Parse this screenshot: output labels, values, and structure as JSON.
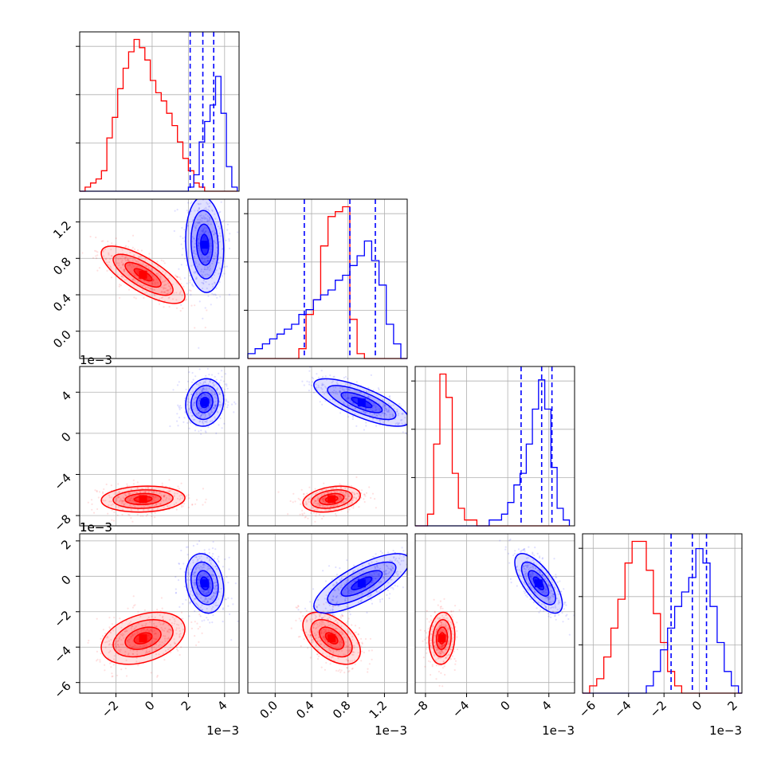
{
  "chart_data": {
    "type": "corner",
    "colors": {
      "series_a": "#ff0000",
      "series_b": "#0000ff",
      "grid": "#b0b0b0",
      "frame": "#000000"
    },
    "series": [
      {
        "color": "red"
      },
      {
        "color": "blue"
      }
    ],
    "grid": true,
    "parameters": [
      {
        "range": [
          -0.004,
          0.0048
        ],
        "ticks": [
          -0.002,
          0.0,
          0.002,
          0.004
        ],
        "tick_labels": [
          "−2",
          "0",
          "2",
          "4"
        ],
        "offset_text": "1e−3"
      },
      {
        "range": [
          -0.3,
          1.45
        ],
        "ticks": [
          0.0,
          0.4,
          0.8,
          1.2
        ],
        "tick_labels": [
          "0.0",
          "0.4",
          "0.8",
          "1.2"
        ],
        "offset_text": "1e−3"
      },
      {
        "range": [
          -0.009,
          0.0065
        ],
        "ticks": [
          -0.008,
          -0.004,
          0.0,
          0.004
        ],
        "tick_labels": [
          "−8",
          "−4",
          "0",
          "4"
        ],
        "offset_text": "1e−3"
      },
      {
        "range": [
          -0.0066,
          0.0024
        ],
        "ticks": [
          -0.006,
          -0.004,
          -0.002,
          0.0,
          0.002
        ],
        "tick_labels": [
          "−6",
          "−4",
          "−2",
          "0",
          "2"
        ],
        "offset_text": "1e−3"
      }
    ],
    "quantiles_series_b": [
      [
        0.0021,
        0.0028,
        0.0034
      ],
      [
        0.32,
        0.82,
        1.1
      ],
      [
        0.0013,
        0.0033,
        0.0043
      ],
      [
        -0.0016,
        -0.0004,
        0.0004
      ]
    ],
    "histograms": [
      {
        "bin_edges": [
          -0.004,
          -0.0037,
          -0.0034,
          -0.0031,
          -0.0028,
          -0.0025,
          -0.0022,
          -0.0019,
          -0.0016,
          -0.0013,
          -0.001,
          -0.0007,
          -0.0004,
          -0.0001,
          0.0002,
          0.0005,
          0.0008,
          0.0011,
          0.0014,
          0.0017,
          0.002,
          0.0023,
          0.0026,
          0.0029,
          0.0032,
          0.0035,
          0.0038,
          0.0041,
          0.0044,
          0.0047
        ],
        "red": [
          0,
          1,
          2,
          3,
          5,
          13,
          18,
          25,
          30,
          34,
          37,
          35,
          32,
          27,
          24,
          22,
          19,
          16,
          12,
          8,
          5,
          2,
          1,
          0,
          0,
          0,
          0,
          0,
          0
        ],
        "blue": [
          0,
          0,
          0,
          0,
          0,
          0,
          0,
          0,
          0,
          0,
          0,
          0,
          0,
          0,
          0,
          0,
          0,
          0,
          0,
          0,
          1,
          4,
          12,
          17,
          21,
          28,
          19,
          6,
          1
        ]
      },
      {
        "bin_edges": [
          -0.3,
          -0.22,
          -0.14,
          -0.06,
          0.02,
          0.1,
          0.18,
          0.26,
          0.34,
          0.42,
          0.5,
          0.58,
          0.66,
          0.74,
          0.82,
          0.9,
          0.98,
          1.06,
          1.14,
          1.22,
          1.3,
          1.38,
          1.45
        ],
        "red": [
          0,
          0,
          0,
          0,
          0,
          0,
          0,
          2,
          9,
          12,
          23,
          29,
          30,
          31,
          8,
          1,
          0,
          0,
          0,
          0,
          0,
          0
        ],
        "blue": [
          1,
          2,
          3,
          4,
          5,
          6,
          7,
          9,
          10,
          12,
          13,
          14,
          16,
          17,
          19,
          21,
          24,
          20,
          15,
          7,
          3,
          0
        ]
      },
      {
        "bin_edges": [
          -0.009,
          -0.0084,
          -0.0078,
          -0.0072,
          -0.0066,
          -0.006,
          -0.0054,
          -0.0048,
          -0.0042,
          -0.0036,
          -0.003,
          -0.0024,
          -0.0018,
          -0.0012,
          -0.0006,
          0.0,
          0.0006,
          0.0012,
          0.0018,
          0.0024,
          0.003,
          0.0036,
          0.0042,
          0.0048,
          0.0054,
          0.006
        ],
        "red": [
          0,
          0,
          2,
          14,
          26,
          22,
          9,
          3,
          1,
          1,
          0,
          0,
          0,
          0,
          0,
          0,
          0,
          0,
          0,
          0,
          0,
          0,
          0,
          0,
          0
        ],
        "blue": [
          0,
          0,
          0,
          0,
          0,
          0,
          0,
          0,
          0,
          0,
          0,
          0,
          1,
          1,
          2,
          4,
          7,
          9,
          14,
          20,
          25,
          20,
          10,
          3,
          1
        ]
      },
      {
        "bin_edges": [
          -0.0066,
          -0.0062,
          -0.0058,
          -0.0054,
          -0.005,
          -0.0046,
          -0.0042,
          -0.0038,
          -0.0034,
          -0.003,
          -0.0026,
          -0.0022,
          -0.0018,
          -0.0014,
          -0.001,
          -0.0006,
          -0.0002,
          0.0002,
          0.0006,
          0.001,
          0.0014,
          0.0018,
          0.0022,
          0.0024
        ],
        "red": [
          0,
          1,
          2,
          5,
          9,
          13,
          18,
          21,
          21,
          17,
          11,
          7,
          3,
          1,
          0,
          0,
          0,
          0,
          0,
          0,
          0,
          0,
          0
        ],
        "blue": [
          0,
          0,
          0,
          0,
          0,
          0,
          0,
          0,
          0,
          1,
          3,
          6,
          9,
          12,
          14,
          16,
          20,
          18,
          12,
          7,
          3,
          1,
          0
        ]
      }
    ],
    "blobs": {
      "red": {
        "means": [
          -0.0005,
          0.62,
          -0.0064,
          -0.0035
        ],
        "sd": [
          0.0011,
          0.15,
          0.0006,
          0.0007
        ]
      },
      "blue": {
        "means": [
          0.0029,
          0.95,
          0.003,
          -0.0004
        ],
        "sd": [
          0.0005,
          0.25,
          0.0011,
          0.0008
        ]
      }
    },
    "panel_links": {
      "1_0": {
        "red": -0.75,
        "blue": -0.1
      },
      "2_0": {
        "red": 0.1,
        "blue": 0.1
      },
      "2_1": {
        "red": 0.3,
        "blue": -0.75
      },
      "3_0": {
        "red": 0.35,
        "blue": -0.2
      },
      "3_1": {
        "red": -0.5,
        "blue": 0.75
      },
      "3_2": {
        "red": 0.1,
        "blue": -0.7
      }
    }
  }
}
